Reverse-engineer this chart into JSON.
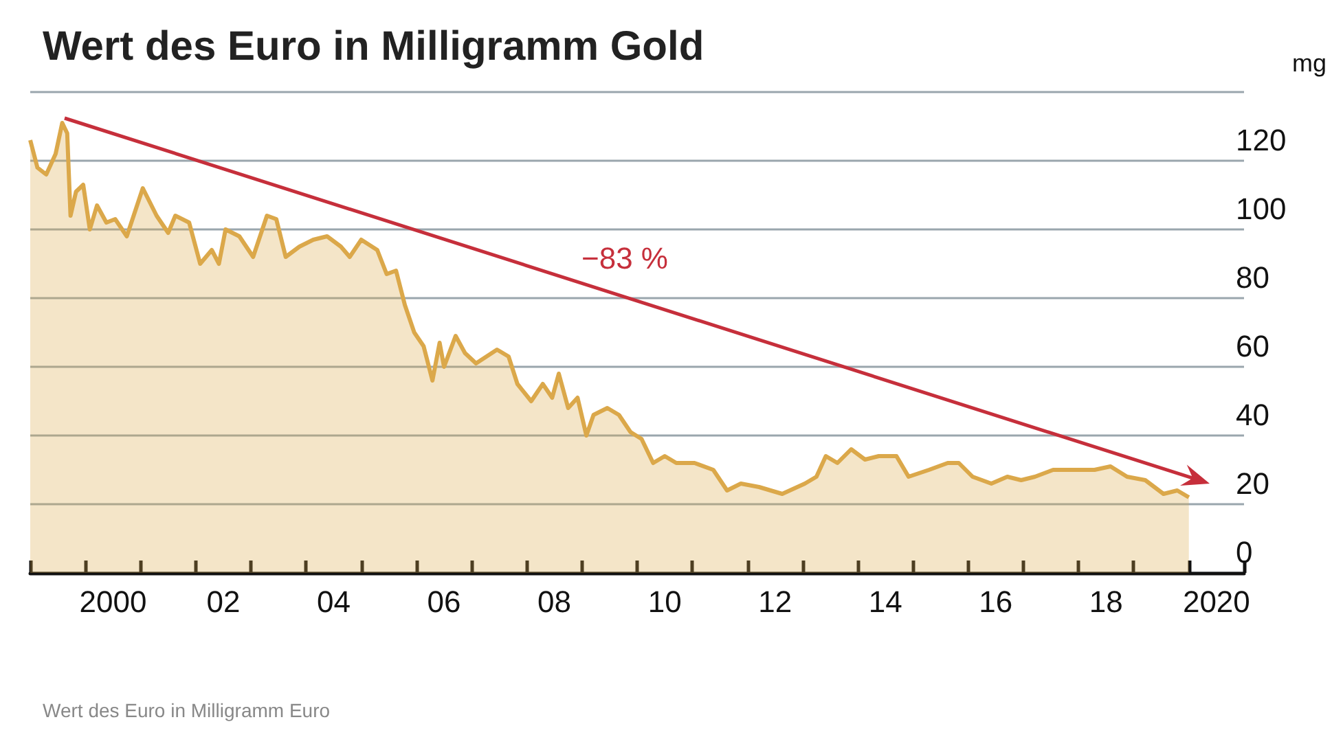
{
  "chart_data": {
    "type": "area",
    "title": "Wert des Euro in Milligramm Gold",
    "ylabel": "mg",
    "annotations": [
      "−83 %",
      "Wert des Euro in Milligramm Euro"
    ],
    "xlim": [
      1998.5,
      2020.5
    ],
    "ylim": [
      0,
      140
    ],
    "yticks": [
      0,
      20,
      40,
      60,
      80,
      100,
      120,
      {
        "value": 140,
        "label": null
      }
    ],
    "xticks": [
      {
        "value": 1998.5,
        "label": null
      },
      {
        "value": 1999.5,
        "label": null
      },
      {
        "value": 2000,
        "label": "2000"
      },
      {
        "value": 2000.5,
        "label": null
      },
      {
        "value": 2001.5,
        "label": null
      },
      {
        "value": 2002,
        "label": "02"
      },
      {
        "value": 2002.5,
        "label": null
      },
      {
        "value": 2003.5,
        "label": null
      },
      {
        "value": 2004,
        "label": "04"
      },
      {
        "value": 2004.5,
        "label": null
      },
      {
        "value": 2005.5,
        "label": null
      },
      {
        "value": 2006,
        "label": "06"
      },
      {
        "value": 2006.5,
        "label": null
      },
      {
        "value": 2007.5,
        "label": null
      },
      {
        "value": 2008,
        "label": "08"
      },
      {
        "value": 2008.5,
        "label": null
      },
      {
        "value": 2009.5,
        "label": null
      },
      {
        "value": 2010,
        "label": "10"
      },
      {
        "value": 2010.5,
        "label": null
      },
      {
        "value": 2011.5,
        "label": null
      },
      {
        "value": 2012,
        "label": "12"
      },
      {
        "value": 2012.5,
        "label": null
      },
      {
        "value": 2013.5,
        "label": null
      },
      {
        "value": 2014,
        "label": "14"
      },
      {
        "value": 2014.5,
        "label": null
      },
      {
        "value": 2015.5,
        "label": null
      },
      {
        "value": 2016,
        "label": "16"
      },
      {
        "value": 2016.5,
        "label": null
      },
      {
        "value": 2017.5,
        "label": null
      },
      {
        "value": 2018,
        "label": "18"
      },
      {
        "value": 2018.5,
        "label": null
      },
      {
        "value": 2019.5,
        "label": null
      },
      {
        "value": 2020,
        "label": "2020"
      },
      {
        "value": 2020.5,
        "label": null
      }
    ],
    "grid": "y",
    "series": [
      {
        "color": "#dba84a",
        "x": [
          1998.5,
          1998.63,
          1998.79,
          1998.96,
          1999.08,
          1999.17,
          1999.23,
          1999.33,
          1999.46,
          1999.58,
          1999.71,
          1999.88,
          2000.04,
          2000.25,
          2000.54,
          2000.79,
          2001.0,
          2001.13,
          2001.38,
          2001.58,
          2001.79,
          2001.92,
          2002.04,
          2002.29,
          2002.54,
          2002.79,
          2002.96,
          2003.13,
          2003.38,
          2003.63,
          2003.88,
          2004.13,
          2004.29,
          2004.5,
          2004.79,
          2004.96,
          2005.13,
          2005.29,
          2005.46,
          2005.63,
          2005.79,
          2005.92,
          2006.0,
          2006.21,
          2006.38,
          2006.58,
          2006.96,
          2007.17,
          2007.33,
          2007.58,
          2007.79,
          2007.96,
          2008.08,
          2008.25,
          2008.42,
          2008.58,
          2008.71,
          2008.96,
          2009.17,
          2009.38,
          2009.58,
          2009.79,
          2010.0,
          2010.21,
          2010.54,
          2010.88,
          2011.13,
          2011.38,
          2011.71,
          2012.13,
          2012.54,
          2012.75,
          2012.92,
          2013.13,
          2013.38,
          2013.63,
          2013.88,
          2014.2,
          2014.42,
          2014.79,
          2015.13,
          2015.33,
          2015.58,
          2015.92,
          2016.21,
          2016.46,
          2016.71,
          2017.04,
          2017.54,
          2017.79,
          2018.08,
          2018.38,
          2018.71,
          2019.04,
          2019.29,
          2019.5
        ],
        "values": [
          126,
          118,
          116,
          122,
          131,
          128,
          104,
          111,
          113,
          100,
          107,
          102,
          103,
          98,
          112,
          104,
          99,
          104,
          102,
          90,
          94,
          90,
          100,
          98,
          92,
          104,
          103,
          92,
          95,
          97,
          98,
          95,
          92,
          97,
          94,
          87,
          88,
          78,
          70,
          66,
          56,
          67,
          60,
          69,
          64,
          61,
          65,
          63,
          55,
          50,
          55,
          51,
          58,
          48,
          51,
          40,
          46,
          48,
          46,
          41,
          39,
          32,
          34,
          32,
          32,
          30,
          24,
          26,
          25,
          23,
          26,
          28,
          34,
          32,
          36,
          33,
          34,
          34,
          28,
          30,
          32,
          32,
          28,
          26,
          28,
          27,
          28,
          30,
          30,
          30,
          31,
          28,
          27,
          23,
          24,
          22
        ]
      }
    ]
  }
}
